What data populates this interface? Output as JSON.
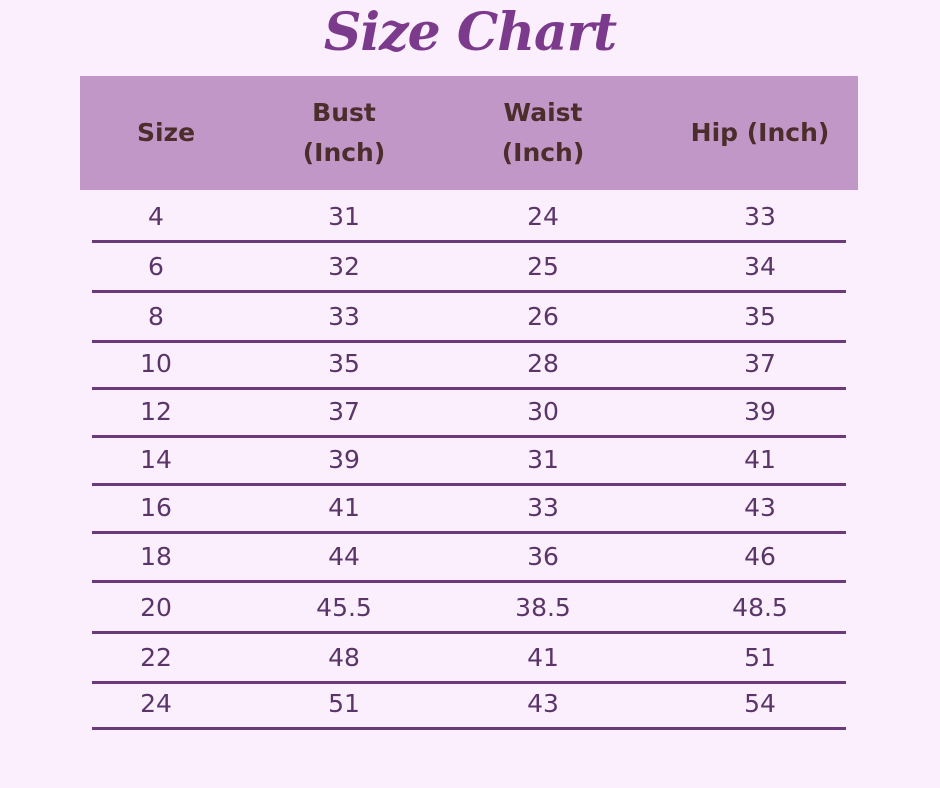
{
  "title": "Size Chart",
  "colors": {
    "background": "#fbeefd",
    "header": "#c197c8",
    "title": "#7b3a8c",
    "rule": "#6b3a7d"
  },
  "table": {
    "headers": [
      "Size",
      "Bust\n(Inch)",
      "Waist\n(Inch)",
      "Hip (Inch)"
    ],
    "rows": [
      [
        "4",
        "31",
        "24",
        "33"
      ],
      [
        "6",
        "32",
        "25",
        "34"
      ],
      [
        "8",
        "33",
        "26",
        "35"
      ],
      [
        "10",
        "35",
        "28",
        "37"
      ],
      [
        "12",
        "37",
        "30",
        "39"
      ],
      [
        "14",
        "39",
        "31",
        "41"
      ],
      [
        "16",
        "41",
        "33",
        "43"
      ],
      [
        "18",
        "44",
        "36",
        "46"
      ],
      [
        "20",
        "45.5",
        "38.5",
        "48.5"
      ],
      [
        "22",
        "48",
        "41",
        "51"
      ],
      [
        "24",
        "51",
        "43",
        "54"
      ]
    ]
  }
}
